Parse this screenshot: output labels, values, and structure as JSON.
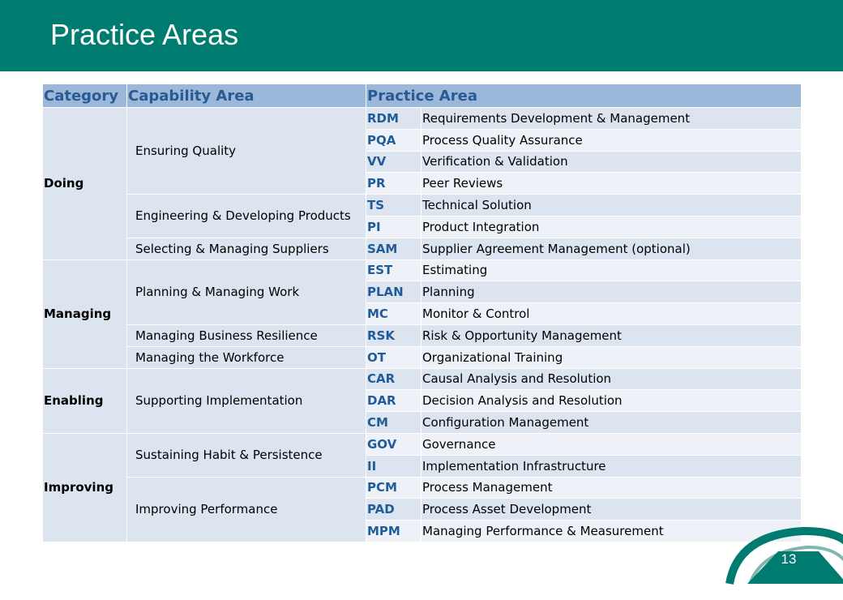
{
  "slide": {
    "title": "Practice Areas",
    "page_number": "13"
  },
  "table": {
    "headers": [
      "Category",
      "Capability Area",
      "Practice Area"
    ],
    "categories": [
      {
        "label": "Doing",
        "capabilities": [
          {
            "label": "Ensuring Quality",
            "practices": [
              {
                "abbr": "RDM",
                "name": "Requirements Development & Management"
              },
              {
                "abbr": "PQA",
                "name": "Process Quality Assurance"
              },
              {
                "abbr": "VV",
                "name": "Verification & Validation"
              },
              {
                "abbr": "PR",
                "name": "Peer Reviews"
              }
            ]
          },
          {
            "label": "Engineering & Developing Products",
            "practices": [
              {
                "abbr": "TS",
                "name": "Technical Solution"
              },
              {
                "abbr": "PI",
                "name": "Product Integration"
              }
            ]
          },
          {
            "label": "Selecting & Managing Suppliers",
            "practices": [
              {
                "abbr": "SAM",
                "name": "Supplier Agreement Management (optional)"
              }
            ]
          }
        ]
      },
      {
        "label": "Managing",
        "capabilities": [
          {
            "label": "Planning & Managing Work",
            "practices": [
              {
                "abbr": "EST",
                "name": "Estimating"
              },
              {
                "abbr": "PLAN",
                "name": "Planning"
              },
              {
                "abbr": "MC",
                "name": "Monitor & Control"
              }
            ]
          },
          {
            "label": "Managing Business Resilience",
            "practices": [
              {
                "abbr": "RSK",
                "name": "Risk & Opportunity Management"
              }
            ]
          },
          {
            "label": "Managing the Workforce",
            "practices": [
              {
                "abbr": "OT",
                "name": "Organizational Training"
              }
            ]
          }
        ]
      },
      {
        "label": "Enabling",
        "capabilities": [
          {
            "label": "Supporting Implementation",
            "practices": [
              {
                "abbr": "CAR",
                "name": "Causal Analysis and Resolution"
              },
              {
                "abbr": "DAR",
                "name": "Decision Analysis and Resolution"
              },
              {
                "abbr": "CM",
                "name": "Configuration Management"
              }
            ]
          }
        ]
      },
      {
        "label": "Improving",
        "capabilities": [
          {
            "label": "Sustaining Habit & Persistence",
            "practices": [
              {
                "abbr": "GOV",
                "name": "Governance"
              },
              {
                "abbr": "II",
                "name": "Implementation Infrastructure"
              }
            ]
          },
          {
            "label": "Improving Performance",
            "practices": [
              {
                "abbr": "PCM",
                "name": "Process Management"
              },
              {
                "abbr": "PAD",
                "name": "Process Asset Development"
              },
              {
                "abbr": "MPM",
                "name": "Managing Performance & Measurement"
              }
            ]
          }
        ]
      }
    ]
  },
  "colors": {
    "header_band": "#007B6F",
    "table_header": "#9BB7D9",
    "table_header_text": "#2A5A93",
    "row_dark": "#DCE4EF",
    "row_light": "#EEF2F8",
    "abbr_text": "#1F5C99"
  }
}
